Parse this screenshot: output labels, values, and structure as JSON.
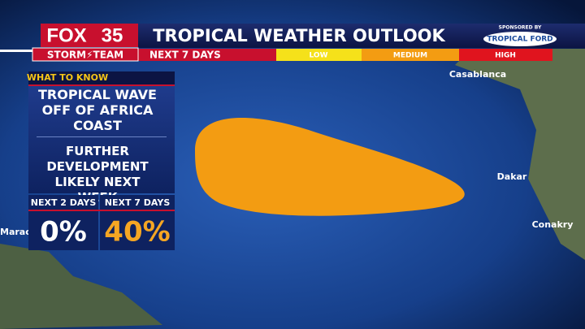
{
  "header": {
    "logo_main": "FOX",
    "logo_number": "35",
    "logo_sub": "STORM⚡TEAM",
    "title": "TROPICAL WEATHER OUTLOOK",
    "subtitle": "NEXT 7 DAYS",
    "scale": [
      "LOW",
      "MEDIUM",
      "HIGH"
    ],
    "sponsor_label": "SPONSORED BY",
    "sponsor_name": "TROPICAL FORD"
  },
  "panel": {
    "heading": "WHAT TO KNOW",
    "items": [
      "TROPICAL WAVE OFF OF AFRICA COAST",
      "FURTHER DEVELOPMENT LIKELY NEXT WEEK"
    ],
    "stats": [
      {
        "label": "NEXT 2 DAYS",
        "value": "0%"
      },
      {
        "label": "NEXT 7 DAYS",
        "value": "40%"
      }
    ]
  },
  "map": {
    "places": [
      "Casablanca",
      "Dakar",
      "Conakry",
      "Marac"
    ]
  }
}
